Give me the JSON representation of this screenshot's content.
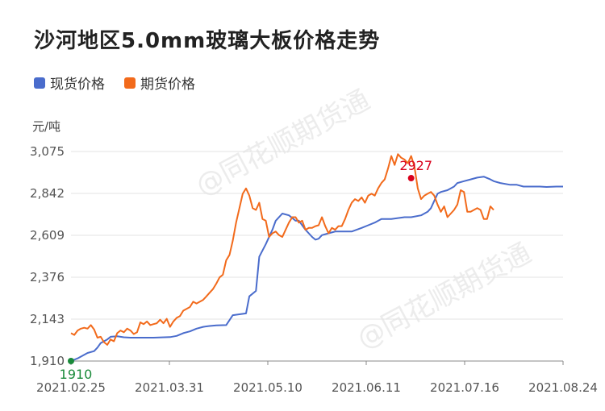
{
  "title": "沙河地区5.0mm玻璃大板价格走势",
  "watermark": "@同花顺期货通",
  "colors": {
    "spot": "#4a6ccc",
    "futures": "#f26a1b",
    "grid": "#e3e3e3",
    "axis": "#888888",
    "start_marker": "#1a8a3a",
    "peak_marker": "#d9001b"
  },
  "chart_data": {
    "type": "line",
    "unit": "元/吨",
    "ylim": [
      1910,
      3075
    ],
    "y_ticks": [
      "1,910",
      "2,143",
      "2,376",
      "2,609",
      "2,842",
      "3,075"
    ],
    "x_tick_labels": [
      "2021.02.25",
      "2021.03.31",
      "2021.05.10",
      "2021.06.11",
      "2021.07.16",
      "2021.08.24"
    ],
    "grid": "horizontal",
    "legend_position": "top-left",
    "series": [
      {
        "name": "现货价格",
        "key": "spot",
        "points": [
          [
            0,
            1910
          ],
          [
            2,
            1925
          ],
          [
            4,
            1945
          ],
          [
            5,
            1955
          ],
          [
            7,
            1965
          ],
          [
            8,
            1985
          ],
          [
            9,
            2010
          ],
          [
            11,
            2030
          ],
          [
            12,
            2045
          ],
          [
            14,
            2048
          ],
          [
            16,
            2042
          ],
          [
            18,
            2040
          ],
          [
            25,
            2040
          ],
          [
            30,
            2043
          ],
          [
            32,
            2050
          ],
          [
            34,
            2065
          ],
          [
            36,
            2075
          ],
          [
            38,
            2090
          ],
          [
            40,
            2100
          ],
          [
            42,
            2105
          ],
          [
            44,
            2108
          ],
          [
            47,
            2110
          ],
          [
            49,
            2165
          ],
          [
            51,
            2170
          ],
          [
            53,
            2175
          ],
          [
            54,
            2270
          ],
          [
            56,
            2300
          ],
          [
            57,
            2490
          ],
          [
            59,
            2560
          ],
          [
            61,
            2640
          ],
          [
            62,
            2690
          ],
          [
            64,
            2730
          ],
          [
            66,
            2720
          ],
          [
            68,
            2690
          ],
          [
            69,
            2690
          ],
          [
            71,
            2640
          ],
          [
            72,
            2620
          ],
          [
            73,
            2600
          ],
          [
            74,
            2585
          ],
          [
            75,
            2590
          ],
          [
            76,
            2610
          ],
          [
            78,
            2620
          ],
          [
            79,
            2625
          ],
          [
            80,
            2630
          ],
          [
            85,
            2630
          ],
          [
            88,
            2650
          ],
          [
            90,
            2665
          ],
          [
            92,
            2680
          ],
          [
            94,
            2700
          ],
          [
            97,
            2700
          ],
          [
            99,
            2705
          ],
          [
            101,
            2710
          ],
          [
            103,
            2710
          ],
          [
            106,
            2720
          ],
          [
            108,
            2740
          ],
          [
            109,
            2760
          ],
          [
            111,
            2840
          ],
          [
            112,
            2850
          ],
          [
            114,
            2860
          ],
          [
            116,
            2880
          ],
          [
            117,
            2900
          ],
          [
            119,
            2910
          ],
          [
            121,
            2920
          ],
          [
            123,
            2930
          ],
          [
            125,
            2935
          ],
          [
            127,
            2920
          ],
          [
            128,
            2910
          ],
          [
            130,
            2900
          ],
          [
            133,
            2890
          ],
          [
            135,
            2890
          ],
          [
            137,
            2880
          ],
          [
            139,
            2880
          ],
          [
            142,
            2880
          ],
          [
            144,
            2878
          ],
          [
            147,
            2880
          ],
          [
            149,
            2880
          ]
        ]
      },
      {
        "name": "期货价格",
        "key": "futures",
        "points": [
          [
            0,
            2065
          ],
          [
            1,
            2055
          ],
          [
            2,
            2080
          ],
          [
            3,
            2090
          ],
          [
            4,
            2095
          ],
          [
            5,
            2090
          ],
          [
            6,
            2110
          ],
          [
            7,
            2085
          ],
          [
            8,
            2040
          ],
          [
            9,
            2045
          ],
          [
            10,
            2015
          ],
          [
            11,
            2000
          ],
          [
            12,
            2030
          ],
          [
            13,
            2020
          ],
          [
            14,
            2065
          ],
          [
            15,
            2080
          ],
          [
            16,
            2070
          ],
          [
            17,
            2090
          ],
          [
            18,
            2080
          ],
          [
            19,
            2060
          ],
          [
            20,
            2070
          ],
          [
            21,
            2125
          ],
          [
            22,
            2115
          ],
          [
            23,
            2130
          ],
          [
            24,
            2110
          ],
          [
            25,
            2115
          ],
          [
            26,
            2120
          ],
          [
            27,
            2140
          ],
          [
            28,
            2120
          ],
          [
            29,
            2145
          ],
          [
            30,
            2100
          ],
          [
            31,
            2130
          ],
          [
            32,
            2150
          ],
          [
            33,
            2160
          ],
          [
            34,
            2190
          ],
          [
            35,
            2200
          ],
          [
            36,
            2210
          ],
          [
            37,
            2240
          ],
          [
            38,
            2230
          ],
          [
            39,
            2240
          ],
          [
            40,
            2250
          ],
          [
            41,
            2270
          ],
          [
            42,
            2290
          ],
          [
            43,
            2310
          ],
          [
            44,
            2340
          ],
          [
            45,
            2375
          ],
          [
            46,
            2390
          ],
          [
            47,
            2470
          ],
          [
            48,
            2500
          ],
          [
            49,
            2580
          ],
          [
            50,
            2680
          ],
          [
            51,
            2760
          ],
          [
            52,
            2840
          ],
          [
            53,
            2870
          ],
          [
            54,
            2830
          ],
          [
            55,
            2760
          ],
          [
            56,
            2750
          ],
          [
            57,
            2790
          ],
          [
            58,
            2700
          ],
          [
            59,
            2690
          ],
          [
            60,
            2600
          ],
          [
            61,
            2620
          ],
          [
            62,
            2630
          ],
          [
            63,
            2610
          ],
          [
            64,
            2600
          ],
          [
            65,
            2640
          ],
          [
            66,
            2680
          ],
          [
            67,
            2710
          ],
          [
            68,
            2710
          ],
          [
            69,
            2680
          ],
          [
            70,
            2690
          ],
          [
            71,
            2640
          ],
          [
            72,
            2650
          ],
          [
            73,
            2650
          ],
          [
            74,
            2660
          ],
          [
            75,
            2665
          ],
          [
            76,
            2710
          ],
          [
            77,
            2660
          ],
          [
            78,
            2620
          ],
          [
            79,
            2650
          ],
          [
            80,
            2640
          ],
          [
            81,
            2660
          ],
          [
            82,
            2660
          ],
          [
            83,
            2700
          ],
          [
            84,
            2750
          ],
          [
            85,
            2790
          ],
          [
            86,
            2810
          ],
          [
            87,
            2800
          ],
          [
            88,
            2820
          ],
          [
            89,
            2790
          ],
          [
            90,
            2830
          ],
          [
            91,
            2840
          ],
          [
            92,
            2830
          ],
          [
            93,
            2870
          ],
          [
            94,
            2900
          ],
          [
            95,
            2920
          ],
          [
            96,
            2980
          ],
          [
            97,
            3050
          ],
          [
            98,
            3000
          ],
          [
            99,
            3060
          ],
          [
            100,
            3040
          ],
          [
            101,
            3030
          ],
          [
            102,
            3010
          ],
          [
            103,
            3050
          ],
          [
            104,
            2990
          ],
          [
            105,
            2870
          ],
          [
            106,
            2810
          ],
          [
            107,
            2830
          ],
          [
            108,
            2840
          ],
          [
            109,
            2850
          ],
          [
            110,
            2830
          ],
          [
            111,
            2780
          ],
          [
            112,
            2740
          ],
          [
            113,
            2770
          ],
          [
            114,
            2710
          ],
          [
            115,
            2730
          ],
          [
            116,
            2750
          ],
          [
            117,
            2780
          ],
          [
            118,
            2860
          ],
          [
            119,
            2850
          ],
          [
            120,
            2740
          ],
          [
            121,
            2740
          ],
          [
            122,
            2750
          ],
          [
            123,
            2760
          ],
          [
            124,
            2750
          ],
          [
            125,
            2700
          ],
          [
            126,
            2700
          ],
          [
            127,
            2770
          ],
          [
            128,
            2750
          ]
        ]
      }
    ],
    "annotations": [
      {
        "label": "1910",
        "series": "spot",
        "x": 0,
        "y": 1910,
        "color": "start_marker"
      },
      {
        "label": "2927",
        "series": "spot",
        "x": 103,
        "y": 2927,
        "color": "peak_marker"
      }
    ]
  }
}
